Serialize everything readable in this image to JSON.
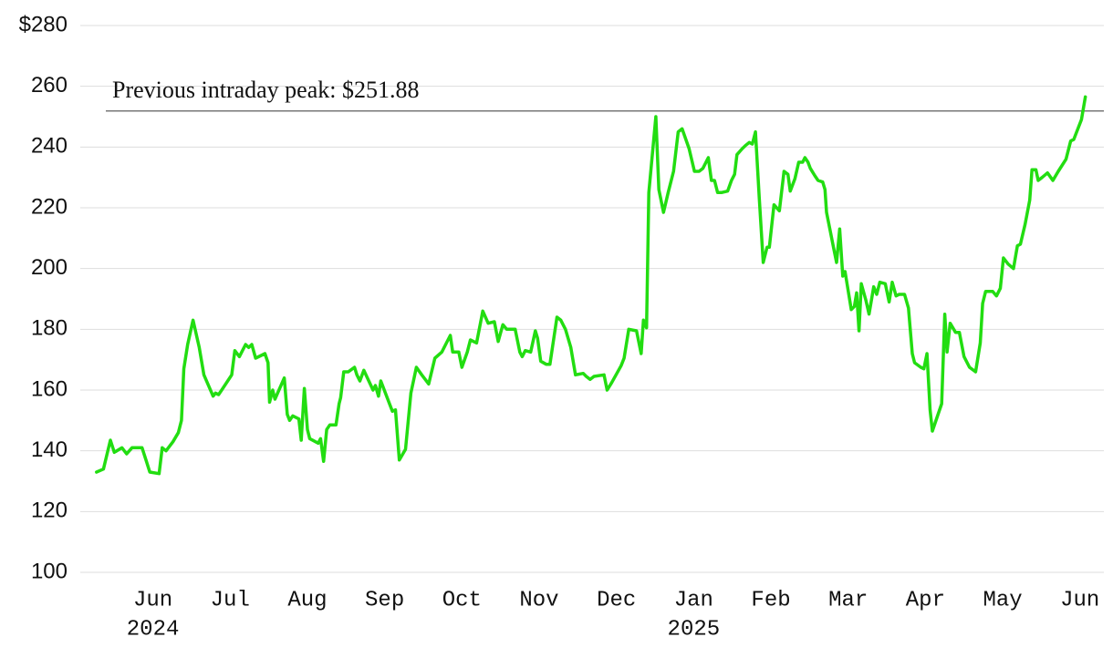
{
  "chart_data": {
    "type": "line",
    "ylim": [
      100,
      280
    ],
    "yticks": [
      100,
      120,
      140,
      160,
      180,
      200,
      220,
      240,
      260,
      {
        "value": 280,
        "label": "$280"
      }
    ],
    "xlim": [
      4.06,
      17.31
    ],
    "xticks": [
      {
        "value": 5,
        "label": "Jun"
      },
      {
        "value": 6,
        "label": "Jul"
      },
      {
        "value": 7,
        "label": "Aug"
      },
      {
        "value": 8,
        "label": "Sep"
      },
      {
        "value": 9,
        "label": "Oct"
      },
      {
        "value": 10,
        "label": "Nov"
      },
      {
        "value": 11,
        "label": "Dec"
      },
      {
        "value": 12,
        "label": "Jan"
      },
      {
        "value": 13,
        "label": "Feb"
      },
      {
        "value": 14,
        "label": "Mar"
      },
      {
        "value": 15,
        "label": "Apr"
      },
      {
        "value": 16,
        "label": "May"
      },
      {
        "value": 17,
        "label": "Jun"
      }
    ],
    "year_labels": [
      {
        "value": 5,
        "label": "2024"
      },
      {
        "value": 12,
        "label": "2025"
      }
    ],
    "grid": true,
    "reference_line": {
      "value": 251.88,
      "label": "Previous intraday peak: $251.88",
      "color": "#777777"
    },
    "series": [
      {
        "color": "#22dd11",
        "x": [
          4.27,
          4.36,
          4.45,
          4.5,
          4.6,
          4.66,
          4.73,
          4.86,
          4.91,
          4.96,
          5.08,
          5.12,
          5.17,
          5.26,
          5.33,
          5.37,
          5.4,
          5.45,
          5.52,
          5.6,
          5.66,
          5.78,
          5.81,
          5.85,
          5.89,
          6.02,
          6.06,
          6.12,
          6.2,
          6.24,
          6.28,
          6.33,
          6.45,
          6.49,
          6.51,
          6.55,
          6.58,
          6.7,
          6.74,
          6.77,
          6.81,
          6.89,
          6.92,
          6.96,
          7.0,
          7.03,
          7.14,
          7.17,
          7.21,
          7.25,
          7.29,
          7.37,
          7.41,
          7.43,
          7.47,
          7.53,
          7.61,
          7.64,
          7.68,
          7.73,
          7.85,
          7.88,
          7.92,
          7.95,
          8.07,
          8.1,
          8.14,
          8.19,
          8.27,
          8.34,
          8.41,
          8.48,
          8.57,
          8.65,
          8.74,
          8.79,
          8.85,
          8.88,
          8.96,
          9.0,
          9.07,
          9.11,
          9.19,
          9.27,
          9.34,
          9.42,
          9.47,
          9.53,
          9.58,
          9.69,
          9.75,
          9.78,
          9.82,
          9.89,
          9.95,
          9.98,
          10.02,
          10.09,
          10.14,
          10.23,
          10.28,
          10.34,
          10.41,
          10.47,
          10.57,
          10.61,
          10.66,
          10.71,
          10.84,
          10.88,
          10.94,
          11.06,
          11.1,
          11.16,
          11.26,
          11.32,
          11.35,
          11.39,
          11.42,
          11.51,
          11.55,
          11.61,
          11.67,
          11.74,
          11.8,
          11.85,
          11.94,
          12.01,
          12.07,
          12.12,
          12.19,
          12.23,
          12.27,
          12.31,
          12.36,
          12.44,
          12.49,
          12.53,
          12.56,
          12.63,
          12.67,
          12.72,
          12.76,
          12.8,
          12.85,
          12.9,
          12.95,
          12.98,
          13.04,
          13.11,
          13.17,
          13.22,
          13.25,
          13.31,
          13.36,
          13.41,
          13.44,
          13.48,
          13.51,
          13.57,
          13.61,
          13.67,
          13.7,
          13.72,
          13.81,
          13.85,
          13.89,
          13.93,
          13.96,
          14.04,
          14.08,
          14.11,
          14.14,
          14.17,
          14.23,
          14.27,
          14.33,
          14.37,
          14.41,
          14.48,
          14.53,
          14.57,
          14.62,
          14.66,
          14.73,
          14.78,
          14.83,
          14.86,
          14.94,
          14.98,
          15.02,
          15.06,
          15.09,
          15.21,
          15.25,
          15.28,
          15.32,
          15.39,
          15.44,
          15.5,
          15.57,
          15.65,
          15.71,
          15.74,
          15.78,
          15.87,
          15.92,
          15.97,
          16.01,
          16.07,
          16.14,
          16.19,
          16.23,
          16.29,
          16.35,
          16.38,
          16.43,
          16.46,
          16.51,
          16.58,
          16.65,
          16.72,
          16.82,
          16.88,
          16.92,
          17.02,
          17.07
        ],
        "values": [
          133,
          134,
          143.5,
          139.5,
          141,
          139,
          141,
          141,
          137,
          133,
          132.5,
          141,
          140,
          143,
          146,
          150,
          167,
          175,
          183,
          174,
          165,
          158,
          159,
          158.5,
          160,
          165,
          173,
          171,
          175,
          174,
          175,
          170.5,
          172,
          169,
          156,
          160,
          157,
          164,
          152,
          150,
          151.5,
          150.5,
          143.5,
          160.5,
          147,
          144,
          142.5,
          144,
          136.5,
          147,
          148.5,
          148.5,
          155.5,
          157.5,
          166,
          166,
          167.5,
          165,
          163,
          166.5,
          160,
          161.5,
          158,
          163,
          155,
          153,
          153.5,
          137,
          140.5,
          159,
          167.5,
          165,
          162,
          170.5,
          172.5,
          175,
          178,
          172.5,
          172.5,
          167.5,
          172.5,
          176.5,
          175.5,
          186,
          182,
          182.5,
          176,
          181.5,
          180,
          180,
          172.5,
          171,
          173,
          172.5,
          179.5,
          177,
          169.5,
          168.5,
          168.5,
          184,
          183,
          180,
          174,
          165,
          165.5,
          164.5,
          163.5,
          164.5,
          165,
          160,
          162.5,
          168,
          170.5,
          180,
          179.5,
          172,
          183,
          180.5,
          225,
          250,
          226,
          218.5,
          225,
          232,
          245,
          246,
          239.5,
          232,
          232,
          233,
          236.5,
          229,
          229,
          225,
          225,
          225.5,
          229,
          231,
          237.5,
          239.5,
          240.5,
          241.5,
          241,
          245,
          223,
          202,
          207,
          207,
          221,
          219,
          232,
          231,
          225.5,
          229.5,
          235,
          235,
          236.5,
          235,
          233,
          230.5,
          229,
          228.5,
          226,
          218.5,
          207,
          202,
          213,
          197.5,
          199,
          186.5,
          187.5,
          192,
          179.5,
          195,
          189.5,
          185,
          194,
          191.5,
          195.5,
          195,
          189,
          195.5,
          191,
          191.5,
          191.5,
          187,
          172,
          169,
          167.5,
          167,
          172,
          153.5,
          146.5,
          155.5,
          185,
          172.5,
          182,
          179,
          179,
          171,
          167.5,
          166,
          175.5,
          188.5,
          192.5,
          192.5,
          191,
          193.5,
          203.5,
          201.5,
          200,
          207.5,
          208,
          214.5,
          222.5,
          232.5,
          232.5,
          229,
          230,
          231.5,
          229,
          232,
          236,
          242,
          242.5,
          249,
          256.5
        ]
      }
    ]
  }
}
